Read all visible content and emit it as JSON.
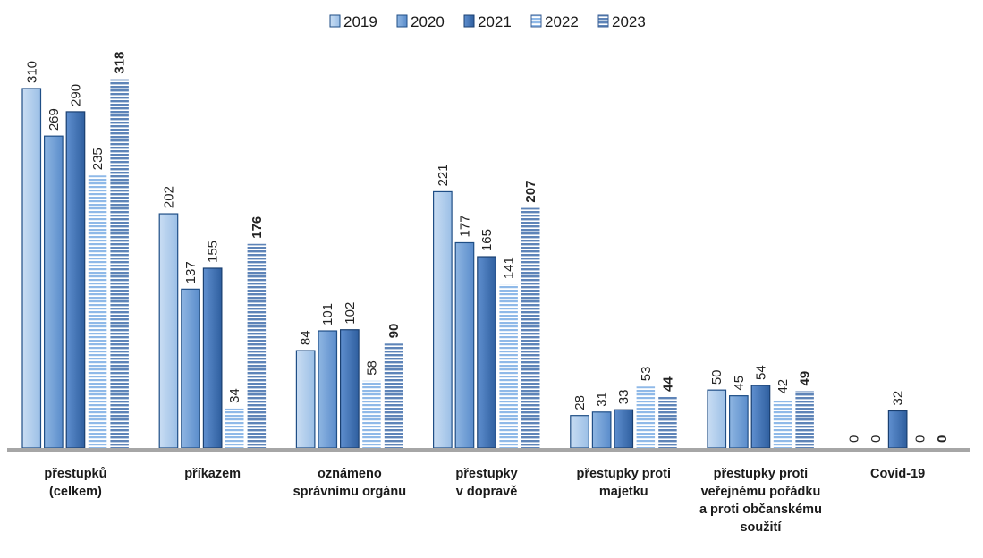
{
  "chart_data": {
    "type": "bar",
    "title": "",
    "xlabel": "",
    "ylabel": "",
    "ylim": [
      0,
      330
    ],
    "legend_position": "top-center",
    "grid": false,
    "categories": [
      [
        "přestupků",
        "(celkem)"
      ],
      [
        "příkazem"
      ],
      [
        "oznámeno",
        "správnímu orgánu"
      ],
      [
        "přestupky",
        "v dopravě"
      ],
      [
        "přestupky proti",
        "majetku"
      ],
      [
        "přestupky proti",
        "veřejnému pořádku",
        "a proti občanskému",
        "soužití"
      ],
      [
        "Covid-19"
      ]
    ],
    "series": [
      {
        "name": "2019",
        "values": [
          310,
          202,
          84,
          221,
          28,
          50,
          0
        ],
        "pattern": "solid-light",
        "color": "#a9c8ea",
        "stroke": "#1f4e86"
      },
      {
        "name": "2020",
        "values": [
          269,
          137,
          101,
          177,
          31,
          45,
          0
        ],
        "pattern": "solid-mid",
        "color": "#6e9fd6",
        "stroke": "#1f4e86"
      },
      {
        "name": "2021",
        "values": [
          290,
          155,
          102,
          165,
          33,
          54,
          32
        ],
        "pattern": "solid-dark",
        "color": "#3f73b5",
        "stroke": "#1a3f70"
      },
      {
        "name": "2022",
        "values": [
          235,
          34,
          58,
          141,
          53,
          42,
          0
        ],
        "pattern": "striped-light",
        "color": "#9cc2ea",
        "stroke": "#ffffff"
      },
      {
        "name": "2023",
        "values": [
          318,
          176,
          90,
          207,
          44,
          49,
          0
        ],
        "pattern": "striped-dark",
        "color": "#6f93c4",
        "stroke": "#3a5f96"
      }
    ],
    "bold_series": [
      "2023"
    ]
  }
}
